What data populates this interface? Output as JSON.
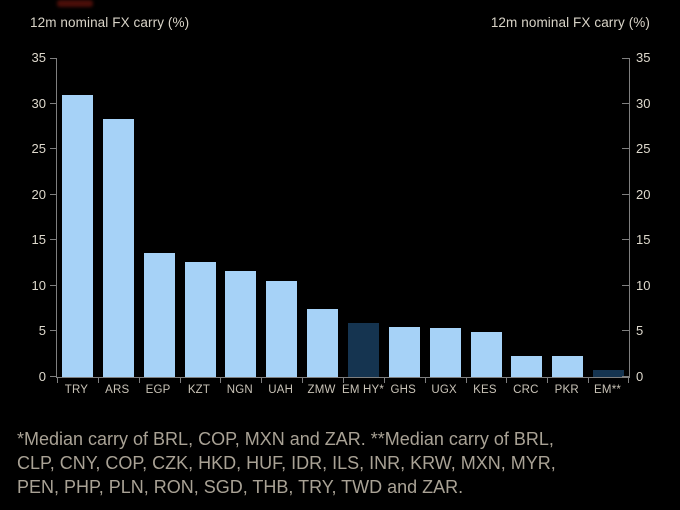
{
  "chart": {
    "title_left": "12m nominal FX carry (%)",
    "title_right": "12m nominal FX carry (%)"
  },
  "chart_data": {
    "type": "bar",
    "title": "12m nominal FX carry (%)",
    "categories": [
      "TRY",
      "ARS",
      "EGP",
      "KZT",
      "NGN",
      "UAH",
      "ZMW",
      "EM HY*",
      "GHS",
      "UGX",
      "KES",
      "CRC",
      "PKR",
      "EM**"
    ],
    "values": [
      30.9,
      28.3,
      13.6,
      12.6,
      11.6,
      10.5,
      7.5,
      5.9,
      5.5,
      5.4,
      4.9,
      2.3,
      2.3,
      0.8
    ],
    "highlight_indices": [
      7,
      13
    ],
    "ylabel": "12m nominal FX carry (%)",
    "ylim": [
      0,
      35
    ],
    "yticks": [
      0,
      5,
      10,
      15,
      20,
      25,
      30,
      35
    ],
    "grid": false,
    "legend": null,
    "colors": {
      "bar": "#a6d2f7",
      "highlight": "#153450",
      "axis": "#7f7f7f",
      "tick_label": "#ded9cd",
      "category_label": "#c9c3b7",
      "background": "#000000"
    }
  },
  "footnote": {
    "lines": [
      "*Median carry of BRL, COP, MXN and ZAR. **Median carry of BRL,",
      "CLP, CNY, COP, CZK, HKD, HUF, IDR, ILS, INR, KRW, MXN, MYR,",
      "PEN, PHP, PLN, RON, SGD, THB, TRY, TWD and ZAR."
    ]
  }
}
